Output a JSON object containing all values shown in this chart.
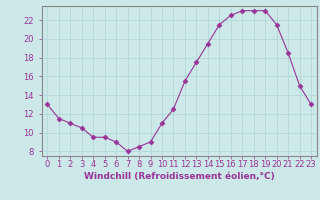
{
  "x": [
    0,
    1,
    2,
    3,
    4,
    5,
    6,
    7,
    8,
    9,
    10,
    11,
    12,
    13,
    14,
    15,
    16,
    17,
    18,
    19,
    20,
    21,
    22,
    23
  ],
  "y": [
    13,
    11.5,
    11,
    10.5,
    9.5,
    9.5,
    9,
    8,
    8.5,
    9,
    11,
    12.5,
    15.5,
    17.5,
    19.5,
    21.5,
    22.5,
    23,
    23,
    23,
    21.5,
    18.5,
    15,
    13
  ],
  "line_color": "#993399",
  "marker": "D",
  "marker_size": 2.5,
  "bg_color": "#cce8e8",
  "grid_color": "#b0d8d8",
  "ylim": [
    7.5,
    23.5
  ],
  "xlim": [
    -0.5,
    23.5
  ],
  "yticks": [
    8,
    10,
    12,
    14,
    16,
    18,
    20,
    22
  ],
  "xtick_labels": [
    "0",
    "1",
    "2",
    "3",
    "4",
    "5",
    "6",
    "7",
    "8",
    "9",
    "10",
    "11",
    "12",
    "13",
    "14",
    "15",
    "16",
    "17",
    "18",
    "19",
    "20",
    "21",
    "22",
    "23"
  ],
  "xlabel": "Windchill (Refroidissement éolien,°C)",
  "xlabel_color": "#993399",
  "tick_color": "#993399",
  "spine_color": "#888888",
  "label_fontsize": 6.5,
  "tick_fontsize": 6.0
}
